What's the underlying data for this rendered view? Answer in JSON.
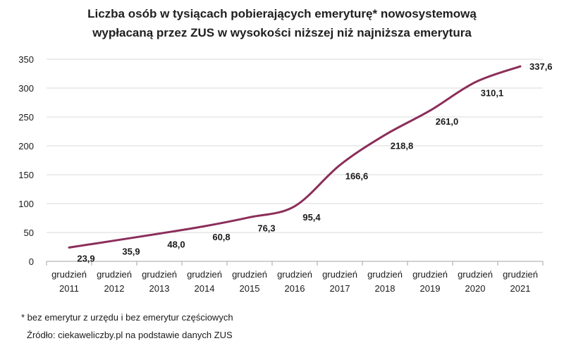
{
  "chart_data": {
    "type": "line",
    "title": [
      "Liczba osób w tysiącach pobierających emeryturę* nowosystemową",
      "wypłacaną przez ZUS w wysokości niższej niż najniższa emerytura"
    ],
    "categories": [
      [
        "grudzień",
        "2011"
      ],
      [
        "grudzień",
        "2012"
      ],
      [
        "grudzień",
        "2013"
      ],
      [
        "grudzień",
        "2014"
      ],
      [
        "grudzień",
        "2015"
      ],
      [
        "grudzień",
        "2016"
      ],
      [
        "grudzień",
        "2017"
      ],
      [
        "grudzień",
        "2018"
      ],
      [
        "grudzień",
        "2019"
      ],
      [
        "grudzień",
        "2020"
      ],
      [
        "grudzień",
        "2021"
      ]
    ],
    "values": [
      23.9,
      35.9,
      48.0,
      60.8,
      76.3,
      95.4,
      166.6,
      218.8,
      261.0,
      310.1,
      337.6
    ],
    "data_labels": [
      "23,9",
      "35,9",
      "48,0",
      "60,8",
      "76,3",
      "95,4",
      "166,6",
      "218,8",
      "261,0",
      "310,1",
      "337,6"
    ],
    "yticks": [
      0,
      50,
      100,
      150,
      200,
      250,
      300,
      350
    ],
    "ylim": [
      0,
      350
    ],
    "grid": true,
    "line_color": "#8b2e5a"
  },
  "footnotes": {
    "note": "* bez emerytur z urzędu i bez emerytur częściowych",
    "source": "Źródło: ciekaweliczby.pl na podstawie danych ZUS"
  }
}
